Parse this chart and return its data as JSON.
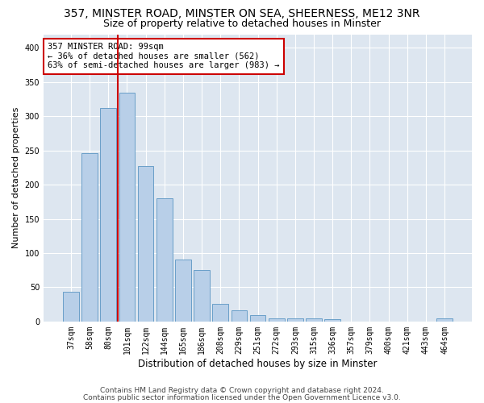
{
  "title1": "357, MINSTER ROAD, MINSTER ON SEA, SHEERNESS, ME12 3NR",
  "title2": "Size of property relative to detached houses in Minster",
  "xlabel": "Distribution of detached houses by size in Minster",
  "ylabel": "Number of detached properties",
  "categories": [
    "37sqm",
    "58sqm",
    "80sqm",
    "101sqm",
    "122sqm",
    "144sqm",
    "165sqm",
    "186sqm",
    "208sqm",
    "229sqm",
    "251sqm",
    "272sqm",
    "293sqm",
    "315sqm",
    "336sqm",
    "357sqm",
    "379sqm",
    "400sqm",
    "421sqm",
    "443sqm",
    "464sqm"
  ],
  "values": [
    44,
    246,
    312,
    334,
    227,
    180,
    91,
    75,
    26,
    16,
    9,
    4,
    5,
    5,
    3,
    0,
    0,
    0,
    0,
    0,
    4
  ],
  "bar_color": "#b8cfe8",
  "bar_edge_color": "#6a9fc8",
  "annotation_line1": "357 MINSTER ROAD: 99sqm",
  "annotation_line2": "← 36% of detached houses are smaller (562)",
  "annotation_line3": "63% of semi-detached houses are larger (983) →",
  "annotation_box_color": "#ffffff",
  "annotation_box_edge": "#cc0000",
  "vline_color": "#cc0000",
  "ylim": [
    0,
    420
  ],
  "yticks": [
    0,
    50,
    100,
    150,
    200,
    250,
    300,
    350,
    400
  ],
  "footer1": "Contains HM Land Registry data © Crown copyright and database right 2024.",
  "footer2": "Contains public sector information licensed under the Open Government Licence v3.0.",
  "plot_bg_color": "#dde6f0",
  "fig_bg_color": "#ffffff",
  "grid_color": "#ffffff",
  "title1_fontsize": 10,
  "title2_fontsize": 9,
  "ylabel_fontsize": 8,
  "xlabel_fontsize": 8.5,
  "tick_fontsize": 7,
  "footer_fontsize": 6.5,
  "annot_fontsize": 7.5
}
